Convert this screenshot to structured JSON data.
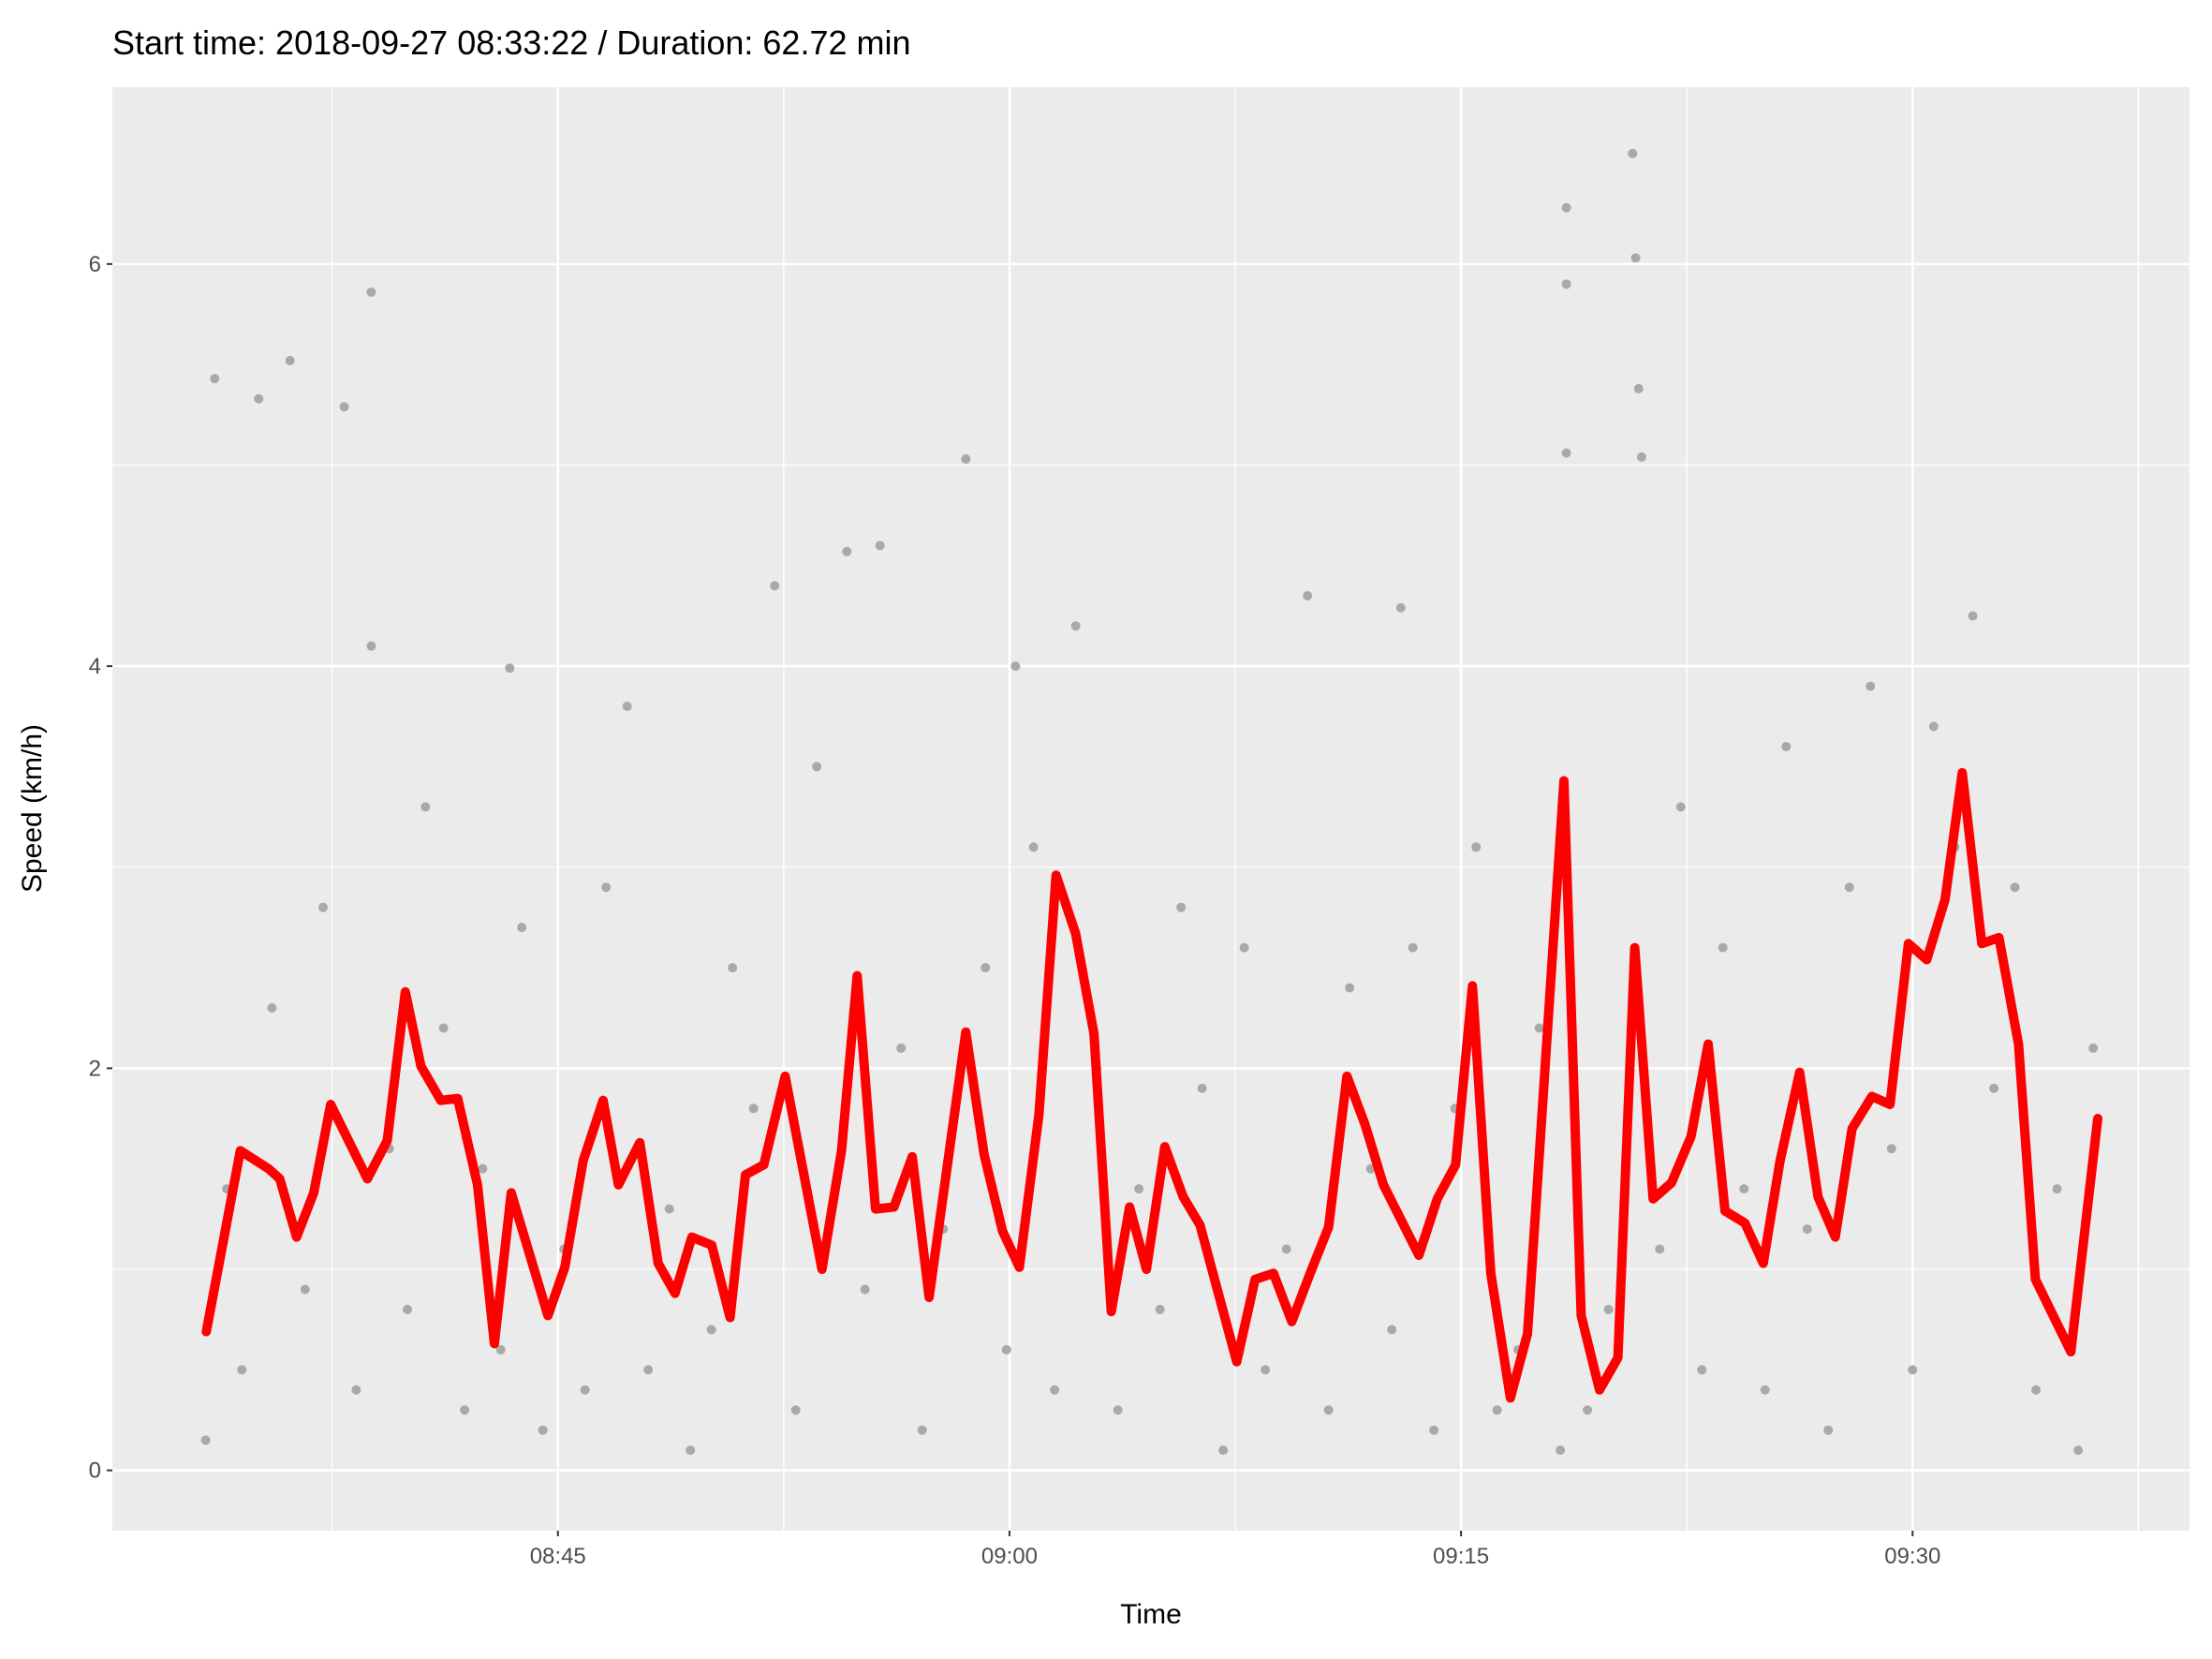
{
  "chart_data": {
    "type": "line",
    "title": "Start time: 2018-09-27 08:33:22 / Duration: 62.72 min",
    "x_label": "Time",
    "y_label": "Speed (km/h)",
    "xlim": [
      510.2,
      579.2
    ],
    "ylim": [
      -0.3,
      6.88
    ],
    "xticks": [
      {
        "value": 525,
        "label": "08:45"
      },
      {
        "value": 540,
        "label": "09:00"
      },
      {
        "value": 555,
        "label": "09:15"
      },
      {
        "value": 570,
        "label": "09:30"
      }
    ],
    "yticks": [
      0,
      2,
      4,
      6
    ],
    "grid": true,
    "series": [
      {
        "type": "scatter",
        "color": "#a9a9a9",
        "x": [
          513.3,
          513.6,
          514.0,
          514.5,
          515.06,
          515.5,
          516.1,
          516.6,
          517.2,
          517.9,
          518.3,
          518.8,
          518.8,
          519.4,
          520.0,
          520.6,
          521.2,
          521.9,
          522.5,
          523.1,
          523.4,
          523.8,
          524.5,
          525.2,
          525.9,
          526.6,
          527.3,
          528.0,
          528.7,
          529.4,
          530.1,
          530.8,
          531.5,
          532.2,
          532.9,
          533.6,
          534.6,
          535.2,
          535.7,
          536.4,
          537.1,
          537.8,
          538.55,
          539.2,
          539.9,
          540.2,
          540.8,
          541.5,
          542.2,
          542.9,
          543.6,
          544.3,
          545.0,
          545.7,
          546.4,
          547.1,
          547.8,
          548.5,
          549.2,
          549.9,
          550.6,
          551.3,
          552.0,
          552.7,
          553.0,
          553.4,
          554.1,
          554.8,
          555.5,
          556.2,
          556.9,
          557.6,
          558.3,
          558.5,
          558.5,
          558.5,
          559.2,
          559.9,
          560.7,
          560.8,
          560.9,
          561.0,
          561.6,
          562.3,
          563.0,
          563.7,
          564.4,
          565.1,
          565.8,
          566.5,
          567.2,
          567.9,
          568.6,
          569.3,
          570.0,
          570.7,
          571.4,
          572.0,
          572.7,
          573.4,
          574.1,
          574.8,
          575.5,
          576.0
        ],
        "values": [
          0.15,
          5.43,
          1.4,
          0.5,
          5.33,
          2.3,
          5.52,
          0.9,
          2.8,
          5.29,
          0.4,
          5.86,
          4.1,
          1.6,
          0.8,
          3.3,
          2.2,
          0.3,
          1.5,
          0.6,
          3.99,
          2.7,
          0.2,
          1.1,
          0.4,
          2.9,
          3.8,
          0.5,
          1.3,
          0.1,
          0.7,
          2.5,
          1.8,
          4.4,
          0.3,
          3.5,
          4.57,
          0.9,
          4.6,
          2.1,
          0.2,
          1.2,
          5.03,
          2.5,
          0.6,
          4.0,
          3.1,
          0.4,
          4.2,
          2.0,
          0.3,
          1.4,
          0.8,
          2.8,
          1.9,
          0.1,
          2.6,
          0.5,
          1.1,
          4.35,
          0.3,
          2.4,
          1.5,
          0.7,
          4.29,
          2.6,
          0.2,
          1.8,
          3.1,
          0.3,
          0.6,
          2.2,
          0.1,
          6.28,
          5.9,
          5.06,
          0.3,
          0.8,
          6.55,
          6.03,
          5.38,
          5.04,
          1.1,
          3.3,
          0.5,
          2.6,
          1.4,
          0.4,
          3.6,
          1.2,
          0.2,
          2.9,
          3.9,
          1.6,
          0.5,
          3.7,
          3.1,
          4.25,
          1.9,
          2.9,
          0.4,
          1.4,
          0.1,
          2.1
        ]
      },
      {
        "type": "line",
        "color": "#ff0000",
        "x": [
          513.32,
          514.45,
          515.39,
          515.76,
          516.32,
          516.89,
          517.45,
          518.67,
          519.33,
          519.93,
          520.45,
          521.11,
          521.67,
          522.33,
          522.89,
          523.45,
          524.67,
          525.23,
          525.84,
          526.5,
          527.01,
          527.72,
          528.33,
          528.89,
          529.45,
          530.11,
          530.72,
          531.23,
          531.84,
          532.55,
          533.77,
          534.42,
          534.94,
          535.55,
          536.16,
          536.77,
          537.33,
          538.55,
          539.16,
          539.77,
          540.33,
          540.98,
          541.55,
          542.2,
          542.81,
          543.38,
          543.99,
          544.55,
          545.16,
          545.77,
          546.33,
          547.55,
          548.16,
          548.77,
          549.38,
          549.99,
          550.6,
          551.21,
          551.81,
          552.42,
          553.6,
          554.21,
          554.82,
          555.38,
          555.99,
          556.64,
          557.21,
          558.42,
          558.99,
          559.6,
          560.21,
          560.77,
          561.38,
          561.99,
          562.64,
          563.21,
          563.77,
          564.43,
          565.04,
          565.6,
          566.25,
          566.86,
          567.43,
          567.99,
          568.65,
          569.25,
          569.86,
          570.47,
          571.08,
          571.65,
          572.3,
          572.87,
          573.52,
          574.08,
          575.26,
          576.15
        ],
        "values": [
          0.69,
          1.59,
          1.5,
          1.45,
          1.16,
          1.38,
          1.82,
          1.45,
          1.64,
          2.38,
          2.01,
          1.84,
          1.85,
          1.42,
          0.63,
          1.38,
          0.77,
          1.01,
          1.54,
          1.84,
          1.42,
          1.63,
          1.03,
          0.88,
          1.16,
          1.12,
          0.76,
          1.47,
          1.52,
          1.96,
          1.0,
          1.59,
          2.46,
          1.3,
          1.31,
          1.56,
          0.86,
          2.18,
          1.57,
          1.19,
          1.01,
          1.77,
          2.96,
          2.67,
          2.17,
          0.79,
          1.31,
          1.0,
          1.61,
          1.36,
          1.22,
          0.54,
          0.95,
          0.98,
          0.74,
          0.98,
          1.21,
          1.96,
          1.72,
          1.42,
          1.07,
          1.35,
          1.52,
          2.41,
          0.98,
          0.36,
          0.68,
          3.43,
          0.77,
          0.4,
          0.56,
          2.6,
          1.35,
          1.43,
          1.66,
          2.12,
          1.29,
          1.23,
          1.03,
          1.54,
          1.98,
          1.36,
          1.16,
          1.7,
          1.86,
          1.82,
          2.62,
          2.54,
          2.84,
          3.47,
          2.62,
          2.65,
          2.12,
          0.95,
          0.59,
          1.75
        ]
      }
    ]
  }
}
